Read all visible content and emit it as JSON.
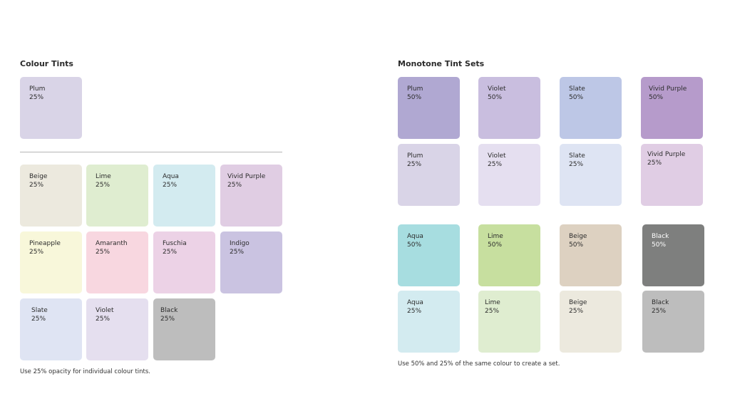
{
  "left": {
    "title": "Colour Tints",
    "note": "Use 25% opacity for individual colour tints.",
    "top_swatch": {
      "name": "Plum",
      "opacity": "25%",
      "color": "#d9d4e7"
    },
    "grid": [
      {
        "name": "Beige",
        "opacity": "25%",
        "color": "#ece9de"
      },
      {
        "name": "Lime",
        "opacity": "25%",
        "color": "#dfedd0"
      },
      {
        "name": "Aqua",
        "opacity": "25%",
        "color": "#d3ebf0"
      },
      {
        "name": "Vivid Purple",
        "opacity": "25%",
        "color": "#e0cde3"
      },
      {
        "name": "Pineapple",
        "opacity": "25%",
        "color": "#f8f7da"
      },
      {
        "name": "Amaranth",
        "opacity": "25%",
        "color": "#f8d7e0"
      },
      {
        "name": "Fuschia",
        "opacity": "25%",
        "color": "#ecd2e6"
      },
      {
        "name": "Indigo",
        "opacity": "25%",
        "color": "#cac3e1"
      },
      {
        "name": "Slate",
        "opacity": "25%",
        "color": "#dfe4f3"
      },
      {
        "name": "Violet",
        "opacity": "25%",
        "color": "#e5dfef"
      },
      {
        "name": "Black",
        "opacity": "25%",
        "color": "#bdbdbd"
      }
    ]
  },
  "right": {
    "title": "Monotone Tint Sets",
    "note": "Use 50% and 25% of the same colour to create a set.",
    "sets": [
      {
        "name": "Plum",
        "opacity": "50%",
        "color": "#b0a8d2",
        "dark": false
      },
      {
        "name": "Violet",
        "opacity": "50%",
        "color": "#c9bedf",
        "dark": false
      },
      {
        "name": "Slate",
        "opacity": "50%",
        "color": "#bdc7e6",
        "dark": false
      },
      {
        "name": "Vivid Purple",
        "opacity": "50%",
        "color": "#b69bcb",
        "dark": false
      },
      {
        "name": "Plum",
        "opacity": "25%",
        "color": "#d9d4e7",
        "dark": false
      },
      {
        "name": "Violet",
        "opacity": "25%",
        "color": "#e5dff0",
        "dark": false
      },
      {
        "name": "Slate",
        "opacity": "25%",
        "color": "#dee4f3",
        "dark": false
      },
      {
        "name": "Vivid Purple",
        "opacity": "25%",
        "color": "#e0cde4",
        "dark": false
      },
      {
        "name": "Aqua",
        "opacity": "50%",
        "color": "#a7dde0",
        "dark": false
      },
      {
        "name": "Lime",
        "opacity": "50%",
        "color": "#c7df9f",
        "dark": false
      },
      {
        "name": "Beige",
        "opacity": "50%",
        "color": "#ddd1c1",
        "dark": false
      },
      {
        "name": "Black",
        "opacity": "50%",
        "color": "#7e7f7e",
        "dark": true
      },
      {
        "name": "Aqua",
        "opacity": "25%",
        "color": "#d3ebf0",
        "dark": false
      },
      {
        "name": "Lime",
        "opacity": "25%",
        "color": "#dfedd0",
        "dark": false
      },
      {
        "name": "Beige",
        "opacity": "25%",
        "color": "#ece9de",
        "dark": false
      },
      {
        "name": "Black",
        "opacity": "25%",
        "color": "#bdbdbd",
        "dark": false
      }
    ]
  }
}
